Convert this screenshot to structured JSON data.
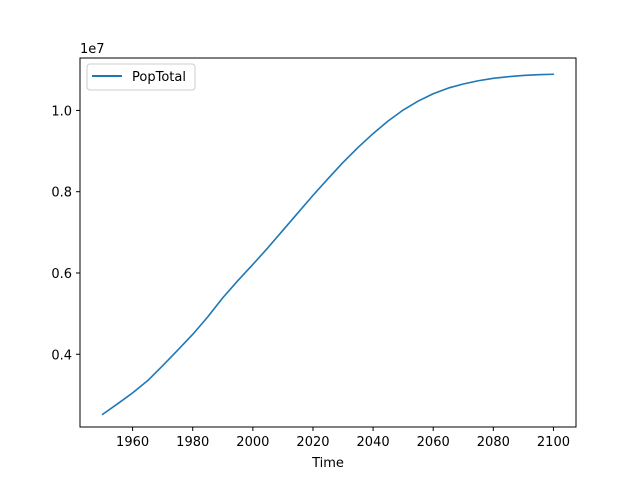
{
  "chart_data": {
    "type": "line",
    "title": "",
    "xlabel": "Time",
    "ylabel": "",
    "offset_text": "1e7",
    "scale": 10000000,
    "xlim": [
      1942.5,
      2107.5
    ],
    "ylim": [
      2210000,
      11290000
    ],
    "xticks": [
      1960,
      1980,
      2000,
      2020,
      2040,
      2060,
      2080,
      2100
    ],
    "xtick_labels": [
      "1960",
      "1980",
      "2000",
      "2020",
      "2040",
      "2060",
      "2080",
      "2100"
    ],
    "yticks": [
      4000000,
      6000000,
      8000000,
      10000000
    ],
    "ytick_labels": [
      "0.4",
      "0.6",
      "0.8",
      "1.0"
    ],
    "grid": false,
    "legend_position": "upper left",
    "series": [
      {
        "name": "PopTotal",
        "color": "#1f77b4",
        "x": [
          1950,
          1955,
          1960,
          1965,
          1970,
          1975,
          1980,
          1985,
          1990,
          1995,
          2000,
          2005,
          2010,
          2015,
          2020,
          2025,
          2030,
          2035,
          2040,
          2045,
          2050,
          2055,
          2060,
          2065,
          2070,
          2075,
          2080,
          2085,
          2090,
          2095,
          2100
        ],
        "y": [
          2520000,
          2780000,
          3050000,
          3350000,
          3720000,
          4100000,
          4490000,
          4920000,
          5390000,
          5810000,
          6210000,
          6620000,
          7050000,
          7480000,
          7910000,
          8320000,
          8720000,
          9090000,
          9430000,
          9740000,
          10010000,
          10230000,
          10410000,
          10550000,
          10650000,
          10730000,
          10790000,
          10830000,
          10860000,
          10880000,
          10890000
        ]
      }
    ]
  }
}
